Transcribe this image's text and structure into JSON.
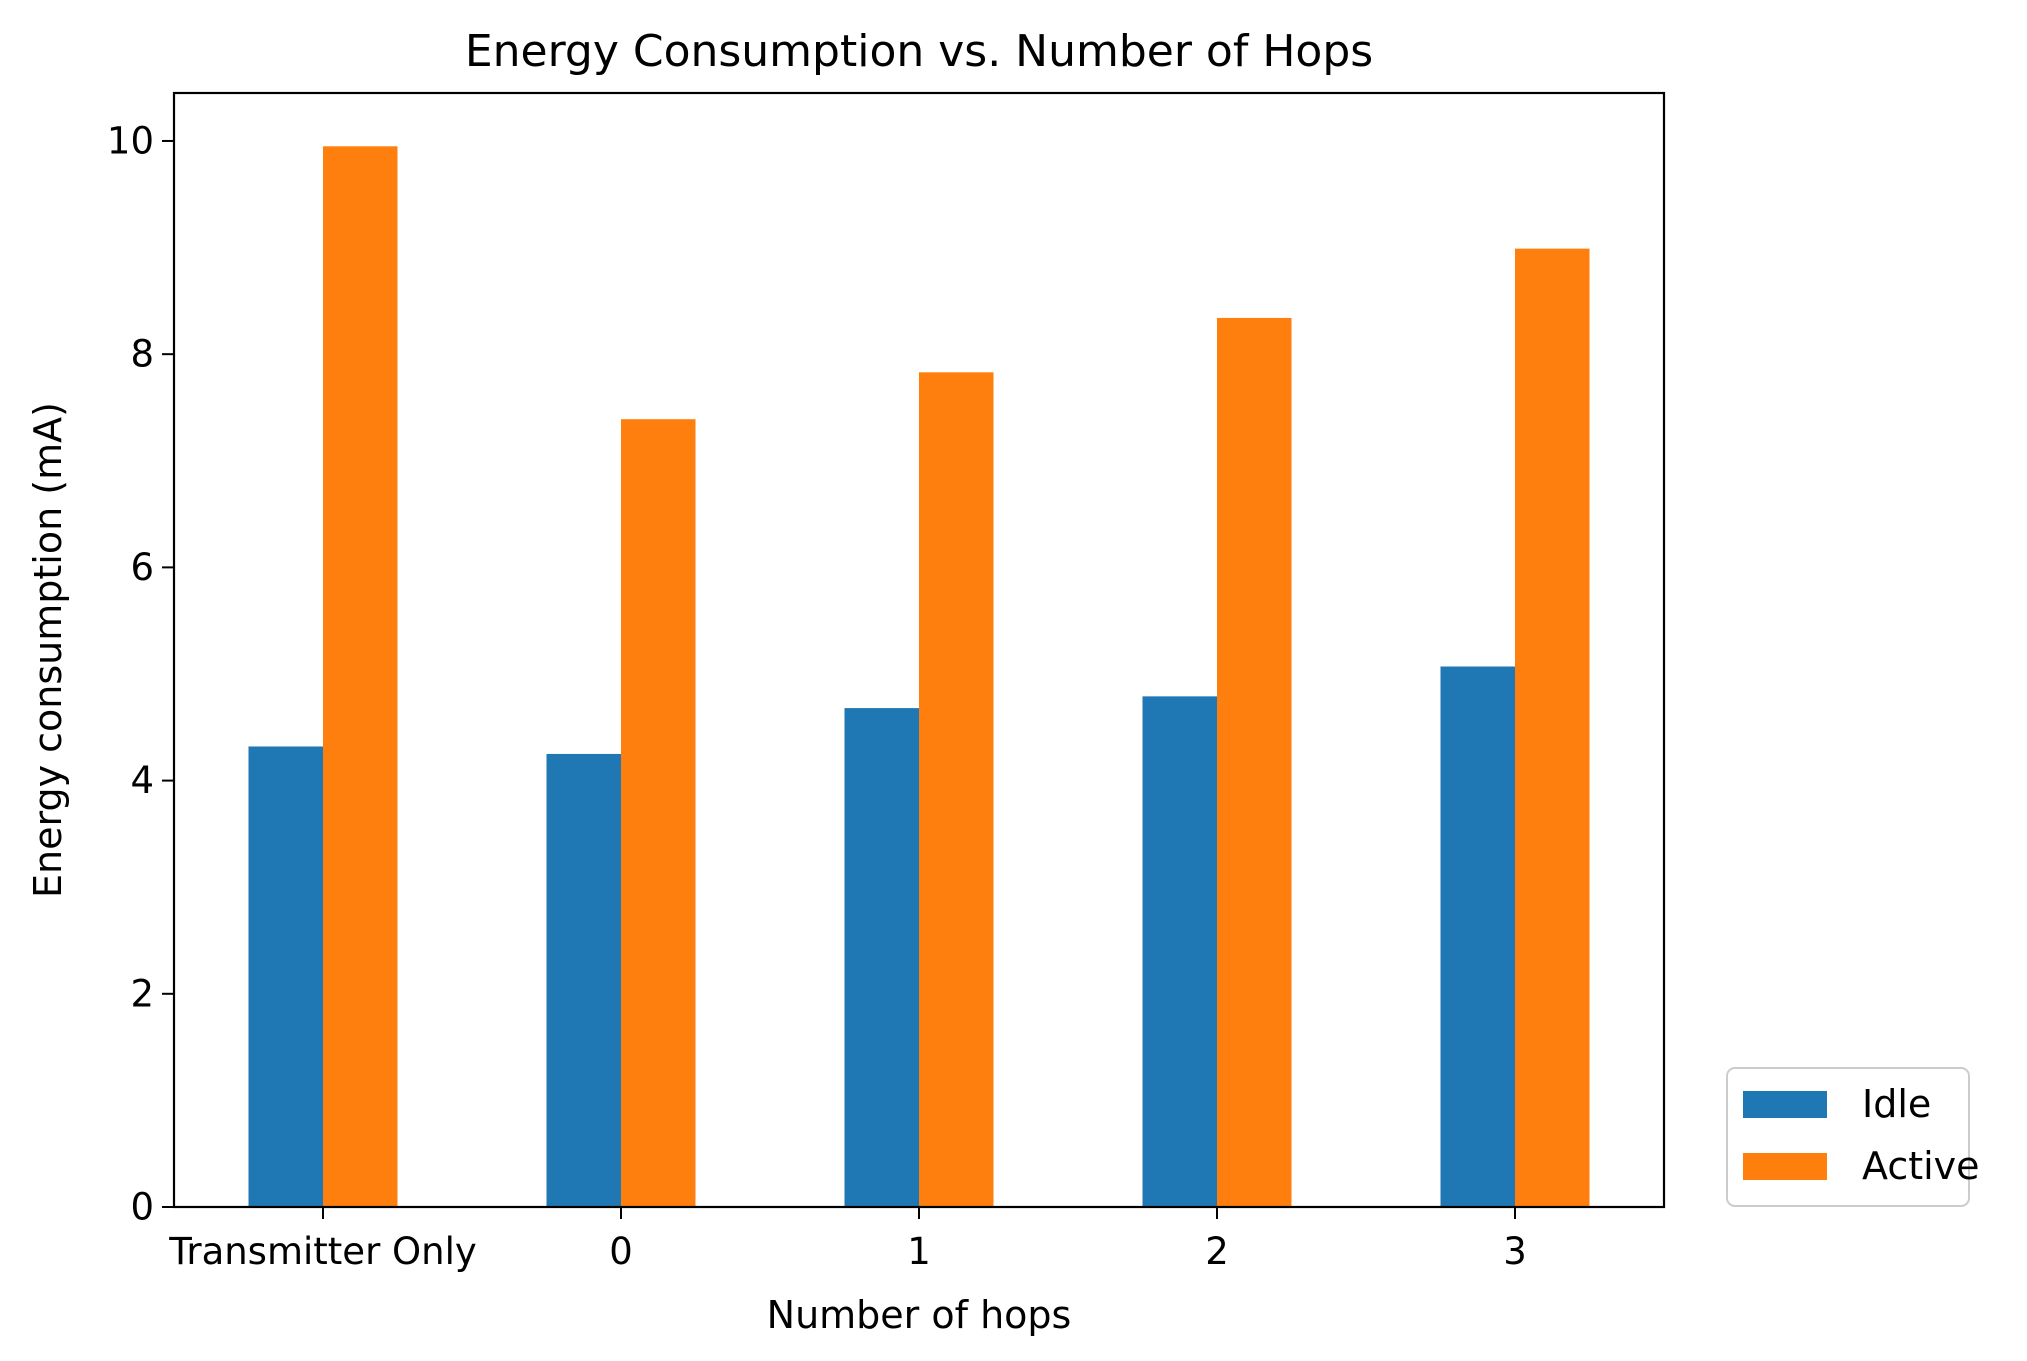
{
  "chart_data": {
    "type": "bar",
    "title": "Energy Consumption vs. Number of Hops",
    "xlabel": "Number of hops",
    "ylabel": "Energy consumption (mA)",
    "categories": [
      "Transmitter Only",
      "0",
      "1",
      "2",
      "3"
    ],
    "series": [
      {
        "name": "Idle",
        "color": "#1f77b4",
        "values": [
          4.32,
          4.25,
          4.68,
          4.79,
          5.07
        ]
      },
      {
        "name": "Active",
        "color": "#ff7f0e",
        "values": [
          9.95,
          7.39,
          7.83,
          8.34,
          8.99
        ]
      }
    ],
    "ylim": [
      0,
      10.45
    ],
    "yticks": [
      0,
      2,
      4,
      6,
      8,
      10
    ],
    "grid": false,
    "legend_position": "outside-lower-right"
  }
}
